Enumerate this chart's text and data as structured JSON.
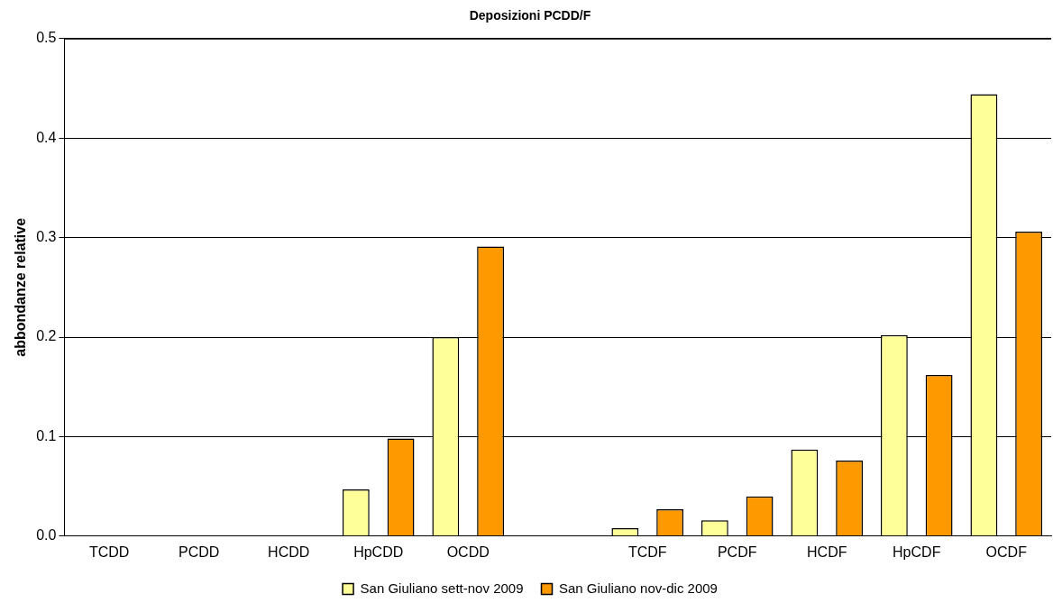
{
  "chart_data": {
    "type": "bar",
    "title": "Deposizioni PCDD/F",
    "ylabel": "abbondanze relative",
    "categories": [
      "TCDD",
      "PCDD",
      "HCDD",
      "HpCDD",
      "OCDD",
      null,
      "TCDF",
      "PCDF",
      "HCDF",
      "HpCDF",
      "OCDF"
    ],
    "series": [
      {
        "name": "San Giuliano sett-nov 2009",
        "color": "#ffff99",
        "values": [
          0,
          0,
          0,
          0.047,
          0.2,
          null,
          0.008,
          0.016,
          0.087,
          0.202,
          0.444
        ]
      },
      {
        "name": "San Giuliano nov-dic 2009",
        "color": "#ff9900",
        "values": [
          0,
          0,
          0,
          0.098,
          0.291,
          null,
          0.027,
          0.04,
          0.076,
          0.162,
          0.306
        ]
      }
    ],
    "ylim": [
      0,
      0.5
    ],
    "yticks": [
      {
        "value": 0,
        "label": "0.0"
      },
      {
        "value": 0.1,
        "label": "0.1"
      },
      {
        "value": 0.2,
        "label": "0.2"
      },
      {
        "value": 0.3,
        "label": "0.3"
      },
      {
        "value": 0.4,
        "label": "0.4"
      },
      {
        "value": 0.5,
        "label": "0.5"
      }
    ],
    "grid": "y",
    "legend": "bottom"
  }
}
